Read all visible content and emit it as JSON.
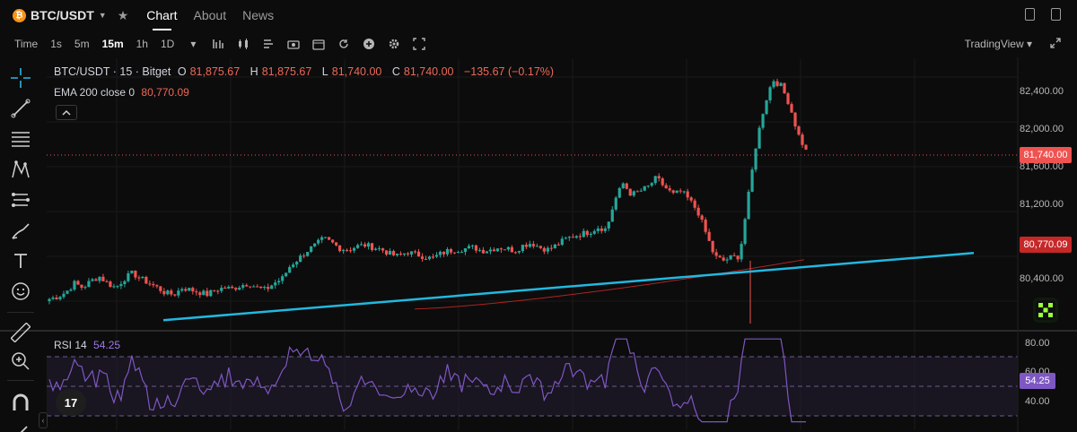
{
  "header": {
    "symbol": "BTC/USDT",
    "coin_glyph": "₿",
    "tabs": [
      {
        "label": "Chart",
        "active": true
      },
      {
        "label": "About",
        "active": false
      },
      {
        "label": "News",
        "active": false
      }
    ]
  },
  "toolbar": {
    "intervals": [
      {
        "label": "Time",
        "active": false
      },
      {
        "label": "1s",
        "active": false
      },
      {
        "label": "5m",
        "active": false
      },
      {
        "label": "15m",
        "active": true
      },
      {
        "label": "1h",
        "active": false
      },
      {
        "label": "1D",
        "active": false
      }
    ],
    "icons": [
      "caret-down-icon",
      "bar-chart-icon",
      "candlestick-icon",
      "indicators-icon",
      "screenshot-icon",
      "calendar-icon",
      "reload-icon",
      "plus-icon",
      "gear-icon",
      "fullscreen-icon"
    ],
    "provider": "TradingView"
  },
  "legend": {
    "title": "BTC/USDT · 15 · Bitget",
    "o_label": "O",
    "o_value": "81,875.67",
    "h_label": "H",
    "h_value": "81,875.67",
    "l_label": "L",
    "l_value": "81,740.00",
    "c_label": "C",
    "c_value": "81,740.00",
    "change": "−135.67 (−0.17%)"
  },
  "ema": {
    "label": "EMA 200 close 0",
    "value": "80,770.09"
  },
  "rsi": {
    "label": "RSI 14",
    "value": "54.25"
  },
  "price_axis": {
    "labels": [
      "82,400.00",
      "82,000.00",
      "81,600.00",
      "81,200.00",
      "80,400.00"
    ],
    "current_price": "81,740.00",
    "ema_price": "80,770.09"
  },
  "rsi_axis": {
    "labels": [
      "80.00",
      "60.00",
      "40.00"
    ],
    "current": "54.25"
  },
  "logo_text": "17",
  "colors": {
    "up": "#26a69a",
    "down": "#ef5350",
    "trendline": "#22b8e0",
    "ema": "#b22222",
    "rsi": "#7e57c2"
  },
  "chart_data": {
    "type": "candlestick",
    "pair": "BTC/USDT",
    "interval": "15",
    "exchange": "Bitget",
    "ylim": [
      80160,
      82560
    ],
    "close_path": [
      80420,
      80440,
      80480,
      80560,
      80520,
      80580,
      80620,
      80560,
      80520,
      80600,
      80650,
      80600,
      80560,
      80520,
      80470,
      80460,
      80520,
      80500,
      80480,
      80460,
      80500,
      80520,
      80510,
      80540,
      80560,
      80520,
      80500,
      80560,
      80600,
      80720,
      80780,
      80850,
      80900,
      80960,
      80920,
      80870,
      80860,
      80890,
      80900,
      80880,
      80860,
      80820,
      80800,
      80840,
      80820,
      80800,
      80780,
      80820,
      80850,
      80860,
      80870,
      80880,
      80850,
      80860,
      80880,
      80870,
      80850,
      80900,
      80920,
      80880,
      80860,
      80900,
      80950,
      80980,
      81000,
      81020,
      81060,
      81040,
      81300,
      81450,
      81350,
      81380,
      81420,
      81500,
      81420,
      81350,
      81380,
      81300,
      81200,
      81000,
      80800,
      80760,
      80790,
      80800,
      81300,
      81800,
      82150,
      82380,
      82320,
      82160,
      81900,
      81740
    ],
    "trendline": {
      "start_price": 80230,
      "end_price": 80830
    },
    "ema200": {
      "start_price": 80330,
      "end_price": 80770
    }
  }
}
